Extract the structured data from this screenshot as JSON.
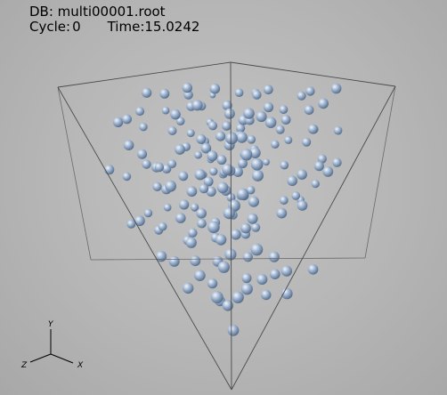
{
  "window": {
    "db_label": "DB: multi00001.root",
    "cycle_label": "Cycle:",
    "cycle_value": "0",
    "time_label": "Time:",
    "time_value": "15.0242"
  },
  "axes": {
    "x": "X",
    "y": "Y",
    "z": "Z"
  },
  "colors": {
    "background": "#b5b5b5",
    "sphere": "#9db3cf",
    "sphere_highlight": "#f2f6fb",
    "sphere_shadow": "#4d6480",
    "box_edge": "#4b4b4b"
  }
}
